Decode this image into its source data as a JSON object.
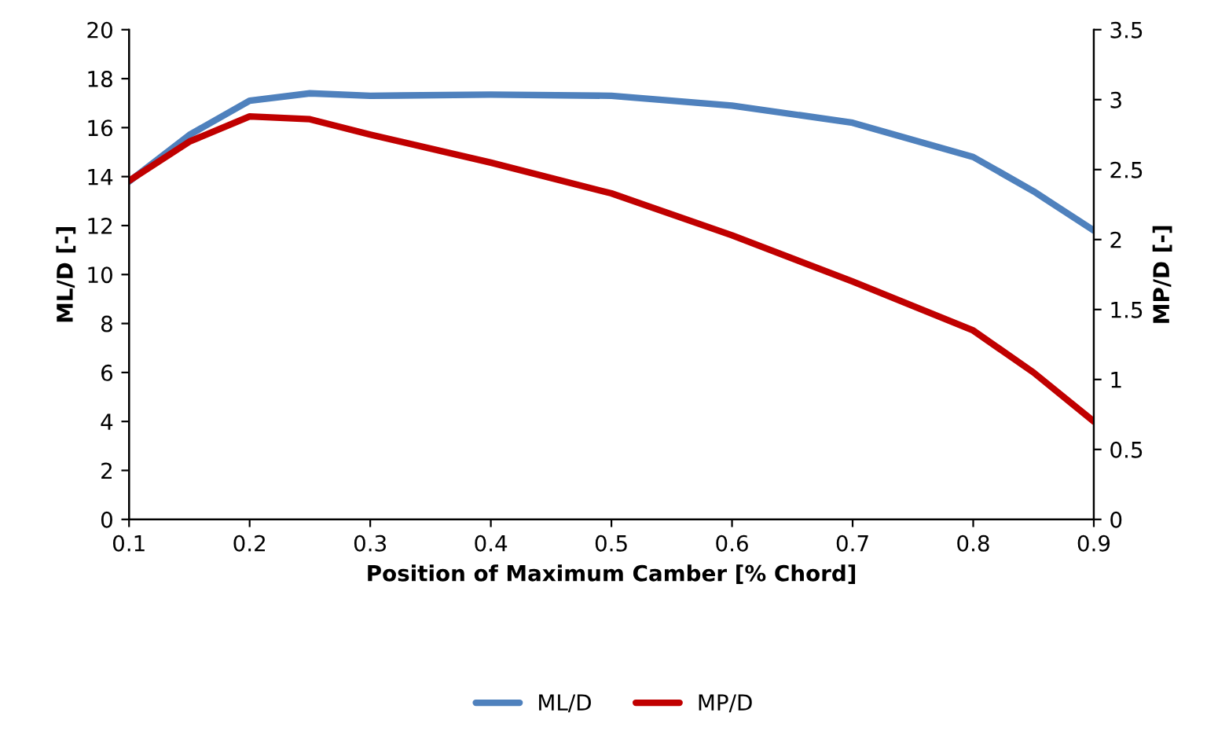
{
  "chart_data": {
    "type": "line",
    "xlabel": "Position of Maximum Camber [% Chord]",
    "ylabel": "ML/D [-]",
    "y2label": "MP/D [-]",
    "x": [
      0.1,
      0.15,
      0.2,
      0.25,
      0.3,
      0.4,
      0.5,
      0.6,
      0.7,
      0.8,
      0.85,
      0.9
    ],
    "series": [
      {
        "name": "ML/D",
        "color": "#4f81bd",
        "values": [
          13.8,
          15.7,
          17.1,
          17.4,
          17.3,
          17.35,
          17.3,
          16.9,
          16.2,
          14.8,
          13.4,
          11.8
        ]
      },
      {
        "name": "MP/D",
        "color": "#c00000",
        "axis": "y2",
        "values": [
          2.42,
          2.7,
          2.88,
          2.86,
          2.75,
          2.55,
          2.33,
          2.03,
          1.7,
          1.35,
          1.05,
          0.7
        ]
      }
    ],
    "xlim": [
      0.1,
      0.9
    ],
    "xticks": [
      0.1,
      0.2,
      0.3,
      0.4,
      0.5,
      0.6,
      0.7,
      0.8,
      0.9
    ],
    "ylim": [
      0,
      20
    ],
    "yticks": [
      0,
      2,
      4,
      6,
      8,
      10,
      12,
      14,
      16,
      18,
      20
    ],
    "y2lim": [
      0,
      3.5
    ],
    "y2ticks": [
      0,
      0.5,
      1,
      1.5,
      2,
      2.5,
      3,
      3.5
    ],
    "grid": false,
    "legend": "bottom"
  }
}
